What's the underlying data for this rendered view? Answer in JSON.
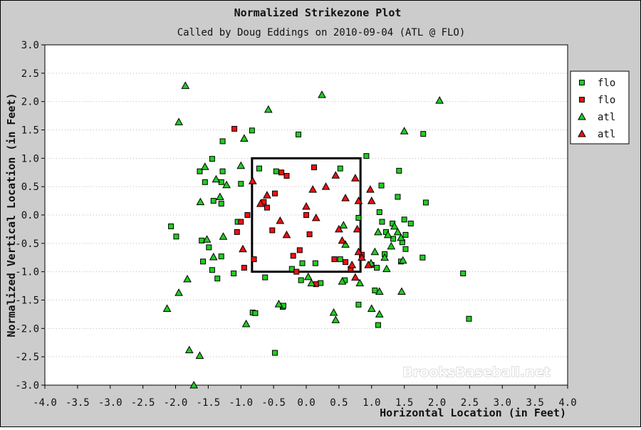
{
  "chart_data": {
    "type": "scatter",
    "title": "Normalized Strikezone Plot",
    "subtitle": "Called by Doug Eddings on 2010-09-04 (ATL @ FLO)",
    "xlabel": "Horizontal Location (in Feet)",
    "ylabel": "Normalized Vertical Location (in Feet)",
    "xlim": [
      -4.0,
      4.0
    ],
    "ylim": [
      -3.0,
      3.0
    ],
    "xticks": [
      "-4.0",
      "-3.5",
      "-3.0",
      "-2.5",
      "-2.0",
      "-1.5",
      "-1.0",
      "-0.5",
      "0.0",
      "0.5",
      "1.0",
      "1.5",
      "2.0",
      "2.5",
      "3.0",
      "3.5",
      "4.0"
    ],
    "yticks": [
      "3.0",
      "2.5",
      "2.0",
      "1.5",
      "1.0",
      "0.5",
      "0.0",
      "-0.5",
      "-1.0",
      "-1.5",
      "-2.0",
      "-2.5",
      "-3.0"
    ],
    "grid": "horizontal-dotted",
    "legend_position": "right",
    "strike_zone": {
      "x": [
        -0.83,
        0.83
      ],
      "y": [
        -1.0,
        1.0
      ]
    },
    "watermark": "BrooksBaseball.net",
    "series": [
      {
        "name": "flo",
        "marker": "square",
        "color": "#22cc22",
        "points": [
          [
            -2.07,
            -0.2
          ],
          [
            -1.99,
            -0.38
          ],
          [
            -1.63,
            0.77
          ],
          [
            -1.6,
            -0.45
          ],
          [
            -1.55,
            0.58
          ],
          [
            -1.49,
            -0.57
          ],
          [
            -1.44,
            0.99
          ],
          [
            -1.42,
            0.25
          ],
          [
            -1.58,
            -0.82
          ],
          [
            -1.44,
            -0.97
          ],
          [
            -1.36,
            -1.12
          ],
          [
            -1.3,
            0.58
          ],
          [
            -1.3,
            0.2
          ],
          [
            -1.28,
            0.77
          ],
          [
            -1.28,
            1.3
          ],
          [
            -1.3,
            -0.73
          ],
          [
            -1.11,
            -1.03
          ],
          [
            -1.0,
            0.55
          ],
          [
            -1.05,
            -0.12
          ],
          [
            -0.83,
            1.49
          ],
          [
            -0.82,
            -1.72
          ],
          [
            -0.78,
            -1.73
          ],
          [
            -0.72,
            0.82
          ],
          [
            -0.63,
            -1.1
          ],
          [
            -0.48,
            -2.43
          ],
          [
            -0.46,
            0.77
          ],
          [
            -0.36,
            -1.62
          ],
          [
            -0.35,
            -1.6
          ],
          [
            -0.22,
            -0.95
          ],
          [
            -0.12,
            1.42
          ],
          [
            -0.08,
            -1.15
          ],
          [
            -0.06,
            -0.85
          ],
          [
            0.14,
            -0.85
          ],
          [
            0.22,
            -1.2
          ],
          [
            0.52,
            -0.78
          ],
          [
            0.52,
            0.82
          ],
          [
            0.59,
            -1.15
          ],
          [
            0.8,
            -0.05
          ],
          [
            0.8,
            -1.58
          ],
          [
            0.92,
            1.04
          ],
          [
            1.05,
            -1.33
          ],
          [
            1.08,
            -0.93
          ],
          [
            1.1,
            -1.94
          ],
          [
            1.12,
            0.05
          ],
          [
            1.15,
            0.52
          ],
          [
            1.16,
            -0.12
          ],
          [
            1.2,
            -0.69
          ],
          [
            1.22,
            -0.3
          ],
          [
            1.32,
            -0.15
          ],
          [
            1.33,
            -0.42
          ],
          [
            1.4,
            0.32
          ],
          [
            1.42,
            0.78
          ],
          [
            1.45,
            -0.82
          ],
          [
            1.47,
            -0.48
          ],
          [
            1.5,
            -0.08
          ],
          [
            1.52,
            -0.6
          ],
          [
            1.52,
            -0.35
          ],
          [
            1.6,
            -0.15
          ],
          [
            1.78,
            -0.75
          ],
          [
            1.79,
            1.43
          ],
          [
            1.83,
            0.22
          ],
          [
            2.4,
            -1.03
          ],
          [
            2.49,
            -1.83
          ]
        ]
      },
      {
        "name": "flo",
        "marker": "square",
        "color": "#ee1111",
        "points": [
          [
            -1.1,
            1.52
          ],
          [
            -1.06,
            -0.3
          ],
          [
            -1.0,
            -0.12
          ],
          [
            -0.95,
            -0.93
          ],
          [
            -0.9,
            0.0
          ],
          [
            -0.8,
            -0.78
          ],
          [
            -0.65,
            0.23
          ],
          [
            -0.6,
            0.13
          ],
          [
            -0.52,
            -0.27
          ],
          [
            -0.48,
            0.38
          ],
          [
            -0.38,
            0.75
          ],
          [
            -0.3,
            0.69
          ],
          [
            -0.2,
            -0.72
          ],
          [
            -0.15,
            -1.0
          ],
          [
            -0.1,
            -0.62
          ],
          [
            0.0,
            0.0
          ],
          [
            0.05,
            -0.34
          ],
          [
            0.12,
            0.84
          ],
          [
            0.15,
            -1.22
          ],
          [
            0.43,
            -0.78
          ],
          [
            0.6,
            -0.83
          ],
          [
            0.68,
            -0.95
          ],
          [
            0.85,
            -0.7
          ],
          [
            1.0,
            -0.88
          ]
        ]
      },
      {
        "name": "atl",
        "marker": "triangle",
        "color": "#22cc22",
        "points": [
          [
            -2.13,
            -1.65
          ],
          [
            -1.95,
            1.64
          ],
          [
            -1.95,
            -1.37
          ],
          [
            -1.85,
            2.28
          ],
          [
            -1.82,
            -1.13
          ],
          [
            -1.79,
            -2.38
          ],
          [
            -1.72,
            -3.0
          ],
          [
            -1.63,
            -2.48
          ],
          [
            -1.62,
            0.23
          ],
          [
            -1.55,
            0.85
          ],
          [
            -1.52,
            -0.43
          ],
          [
            -1.42,
            -0.74
          ],
          [
            -1.38,
            0.63
          ],
          [
            -1.32,
            0.32
          ],
          [
            -1.27,
            -0.38
          ],
          [
            -1.22,
            0.53
          ],
          [
            -1.0,
            0.87
          ],
          [
            -0.95,
            1.35
          ],
          [
            -0.92,
            -1.92
          ],
          [
            -0.58,
            1.86
          ],
          [
            -0.42,
            -1.57
          ],
          [
            0.03,
            -1.09
          ],
          [
            0.08,
            -1.2
          ],
          [
            0.24,
            2.12
          ],
          [
            0.42,
            -1.72
          ],
          [
            0.45,
            -1.85
          ],
          [
            0.55,
            -1.17
          ],
          [
            0.57,
            -0.18
          ],
          [
            0.6,
            -0.52
          ],
          [
            0.82,
            -1.2
          ],
          [
            0.99,
            -0.85
          ],
          [
            1.0,
            -1.65
          ],
          [
            1.05,
            -0.65
          ],
          [
            1.1,
            -0.3
          ],
          [
            1.12,
            -1.35
          ],
          [
            1.12,
            -1.75
          ],
          [
            1.2,
            -0.75
          ],
          [
            1.23,
            -0.95
          ],
          [
            1.25,
            -0.35
          ],
          [
            1.3,
            -0.55
          ],
          [
            1.35,
            -0.2
          ],
          [
            1.4,
            -0.3
          ],
          [
            1.45,
            -0.4
          ],
          [
            1.46,
            -1.35
          ],
          [
            1.48,
            -0.8
          ],
          [
            1.5,
            1.48
          ],
          [
            2.04,
            2.02
          ]
        ]
      },
      {
        "name": "atl",
        "marker": "triangle",
        "color": "#ee1111",
        "points": [
          [
            -0.97,
            -0.6
          ],
          [
            -0.82,
            0.6
          ],
          [
            -0.7,
            0.2
          ],
          [
            -0.6,
            0.35
          ],
          [
            -0.4,
            -0.1
          ],
          [
            -0.3,
            -0.35
          ],
          [
            0.0,
            0.15
          ],
          [
            0.1,
            0.45
          ],
          [
            0.15,
            -0.05
          ],
          [
            0.3,
            0.5
          ],
          [
            0.45,
            0.7
          ],
          [
            0.5,
            -0.25
          ],
          [
            0.55,
            -0.45
          ],
          [
            0.6,
            0.3
          ],
          [
            0.7,
            -0.88
          ],
          [
            0.75,
            -1.1
          ],
          [
            0.75,
            0.65
          ],
          [
            0.78,
            -0.25
          ],
          [
            0.8,
            -0.65
          ],
          [
            0.8,
            0.25
          ],
          [
            0.85,
            -0.75
          ],
          [
            0.95,
            -0.88
          ],
          [
            0.98,
            0.45
          ],
          [
            1.0,
            0.25
          ]
        ]
      }
    ]
  }
}
